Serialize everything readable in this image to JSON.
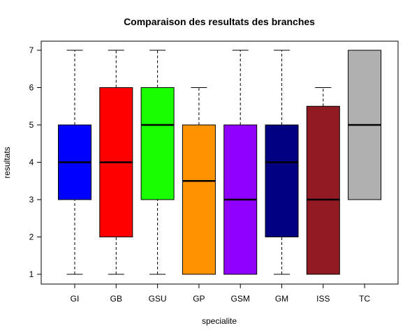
{
  "chart_data": {
    "type": "box",
    "title": "Comparaison des resultats des branches",
    "xlabel": "specialite",
    "ylabel": "resultats",
    "ylim": [
      0.8,
      7.25
    ],
    "yticks": [
      1,
      2,
      3,
      4,
      5,
      6,
      7
    ],
    "grid": false,
    "legend": "none",
    "categories": [
      "GI",
      "GB",
      "GSU",
      "GP",
      "GSM",
      "GM",
      "ISS",
      "TC"
    ],
    "boxes": [
      {
        "category": "GI",
        "min": 1,
        "q1": 3,
        "median": 4,
        "q3": 5,
        "max": 7,
        "color": "#0000ff"
      },
      {
        "category": "GB",
        "min": 1,
        "q1": 2,
        "median": 4,
        "q3": 6,
        "max": 7,
        "color": "#ff0000"
      },
      {
        "category": "GSU",
        "min": 1,
        "q1": 3,
        "median": 5,
        "q3": 6,
        "max": 7,
        "color": "#19ff00"
      },
      {
        "category": "GP",
        "min": 1,
        "q1": 1,
        "median": 3.5,
        "q3": 5,
        "max": 6,
        "color": "#ff9400"
      },
      {
        "category": "GSM",
        "min": 1,
        "q1": 1,
        "median": 3,
        "q3": 5,
        "max": 7,
        "color": "#8f00ff"
      },
      {
        "category": "GM",
        "min": 1,
        "q1": 2,
        "median": 4,
        "q3": 5,
        "max": 7,
        "color": "#000080"
      },
      {
        "category": "ISS",
        "min": 1,
        "q1": 1,
        "median": 3,
        "q3": 5.5,
        "max": 6,
        "color": "#901b22"
      },
      {
        "category": "TC",
        "min": 3,
        "q1": 3,
        "median": 5,
        "q3": 7,
        "max": 7,
        "color": "#b0b0b0"
      }
    ]
  }
}
